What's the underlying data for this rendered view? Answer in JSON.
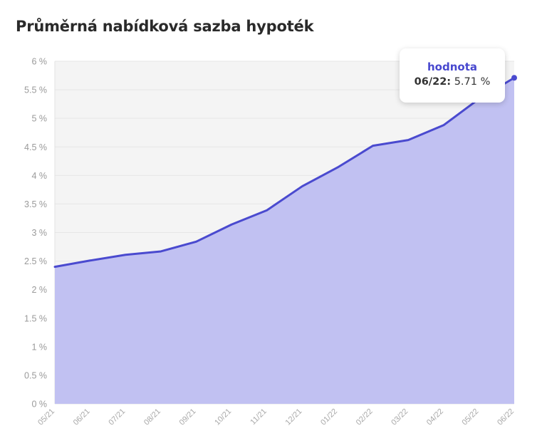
{
  "title": "Průměrná nabídková sazba hypoték",
  "colors": {
    "line": "#4a4acf",
    "area": "#c1c1f2",
    "plot_bg": "#f4f4f4",
    "grid": "#e6e6e6",
    "tooltip_title": "#4848cf"
  },
  "tooltip": {
    "title": "hodnota",
    "label": "06/22:",
    "value": "5.71 %"
  },
  "chart_data": {
    "type": "area",
    "title": "Průměrná nabídková sazba hypoték",
    "categories": [
      "05/21",
      "06/21",
      "07/21",
      "08/21",
      "09/21",
      "10/21",
      "11/21",
      "12/21",
      "01/22",
      "02/22",
      "03/22",
      "04/22",
      "05/22",
      "06/22"
    ],
    "series": [
      {
        "name": "hodnota",
        "values": [
          2.4,
          2.51,
          2.61,
          2.67,
          2.84,
          3.14,
          3.39,
          3.81,
          4.14,
          4.52,
          4.62,
          4.88,
          5.34,
          5.71
        ]
      }
    ],
    "ylim": [
      0,
      6
    ],
    "yticks": [
      0,
      0.5,
      1,
      1.5,
      2,
      2.5,
      3,
      3.5,
      4,
      4.5,
      5,
      5.5,
      6
    ],
    "ytick_labels": [
      "0 %",
      "0.5 %",
      "1 %",
      "1.5 %",
      "2 %",
      "2.5 %",
      "3 %",
      "3.5 %",
      "4 %",
      "4.5 %",
      "5 %",
      "5.5 %",
      "6 %"
    ],
    "grid": true,
    "highlighted_point": "06/22"
  }
}
